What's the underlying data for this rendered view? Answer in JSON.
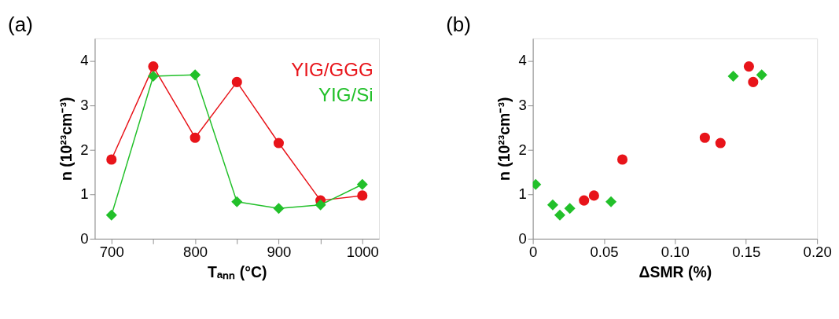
{
  "chart_data": [
    {
      "type": "line",
      "title": "(a)",
      "xlabel": "Tₐₙₙ (°C)",
      "ylabel": "n (10²³cm⁻³)",
      "xlim": [
        680,
        1020
      ],
      "ylim": [
        0,
        4.5
      ],
      "xticks": [
        700,
        {
          "value": 750,
          "label": null
        },
        800,
        {
          "value": 850,
          "label": null
        },
        900,
        {
          "value": 950,
          "label": null
        },
        1000
      ],
      "yticks": [
        0,
        1,
        2,
        3,
        4
      ],
      "x": [
        700,
        750,
        800,
        850,
        900,
        950,
        1000
      ],
      "legend": "top right",
      "grid": false,
      "line_style": "solid",
      "series": [
        {
          "name": "YIG/GGG",
          "color": "#e8141a",
          "marker": "circle",
          "values": [
            1.78,
            3.87,
            2.27,
            3.52,
            2.15,
            0.86,
            0.97
          ]
        },
        {
          "name": "YIG/Si",
          "color": "#22c02a",
          "marker": "diamond",
          "values": [
            0.53,
            3.65,
            3.68,
            0.83,
            0.68,
            0.76,
            1.22
          ]
        }
      ]
    },
    {
      "type": "scatter",
      "title": "(b)",
      "xlabel": "ΔSMR (%)",
      "ylabel": "n (10²³cm⁻³)",
      "xlim": [
        0,
        0.2
      ],
      "ylim": [
        0,
        4.5
      ],
      "xticks": [
        0,
        0.05,
        {
          "value": 0.1,
          "label": "0.10"
        },
        0.15,
        {
          "value": 0.2,
          "label": "0.20"
        }
      ],
      "yticks": [
        0,
        1,
        2,
        3,
        4
      ],
      "grid": false,
      "series": [
        {
          "color": "#e8141a",
          "marker": "circle",
          "x": [
            0.036,
            0.043,
            0.063,
            0.121,
            0.132,
            0.152,
            0.155
          ],
          "values": [
            0.86,
            0.97,
            1.78,
            2.27,
            2.15,
            3.87,
            3.52
          ]
        },
        {
          "color": "#22c02a",
          "marker": "diamond",
          "x": [
            0.002,
            0.014,
            0.019,
            0.026,
            0.055,
            0.141,
            0.161
          ],
          "values": [
            1.22,
            0.76,
            0.53,
            0.68,
            0.83,
            3.65,
            3.68
          ]
        }
      ]
    }
  ]
}
